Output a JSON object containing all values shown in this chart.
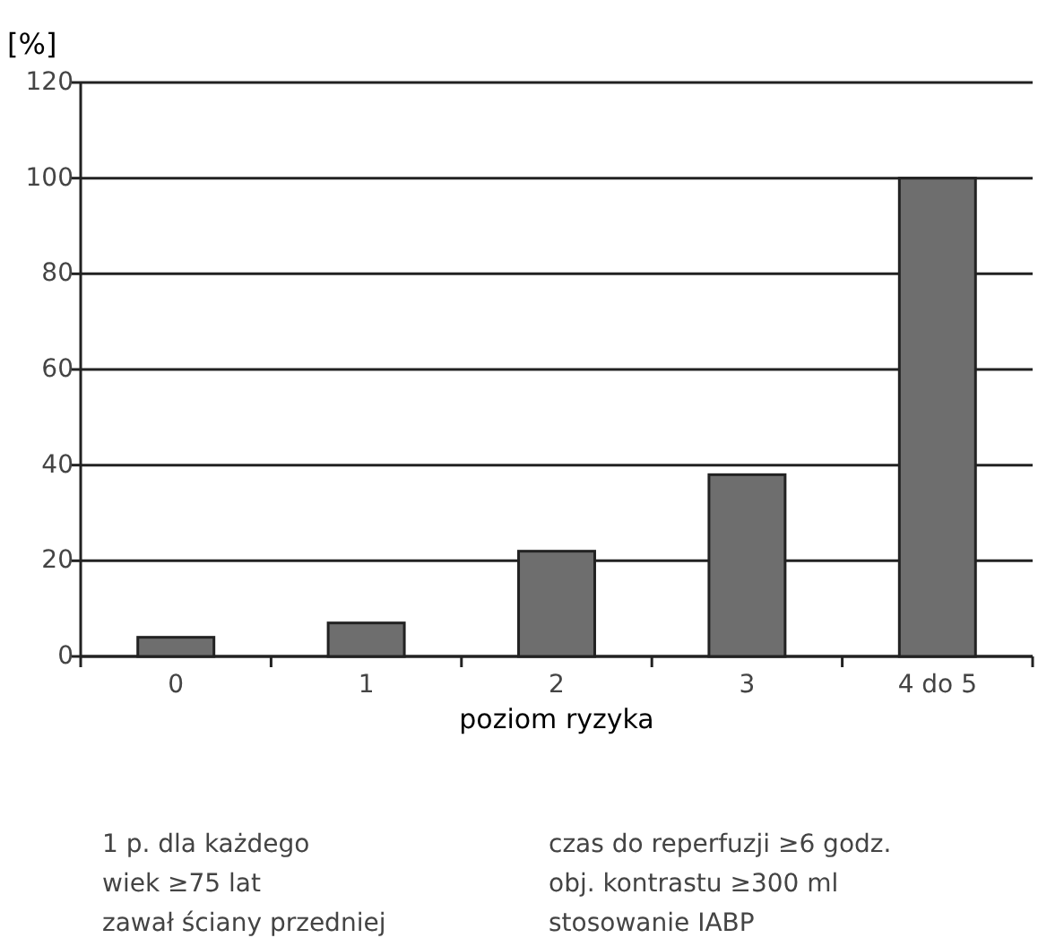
{
  "chart_data": {
    "type": "bar",
    "ylabel": "[%]",
    "xlabel": "poziom ryzyka",
    "categories": [
      "0",
      "1",
      "2",
      "3",
      "4 do 5"
    ],
    "values": [
      4,
      7,
      22,
      38,
      100
    ],
    "color": "#6e6e6e",
    "ylim": [
      0,
      120
    ],
    "yticks": [
      0,
      20,
      40,
      60,
      80,
      100,
      120
    ],
    "grid": "y",
    "annotations": [
      "1 p. dla każdego",
      "wiek ≥75 lat",
      "zawał ściany przedniej",
      "czas do reperfuzji ≥6 godz.",
      "obj. kontrastu ≥300 ml",
      "stosowanie IABP"
    ]
  }
}
